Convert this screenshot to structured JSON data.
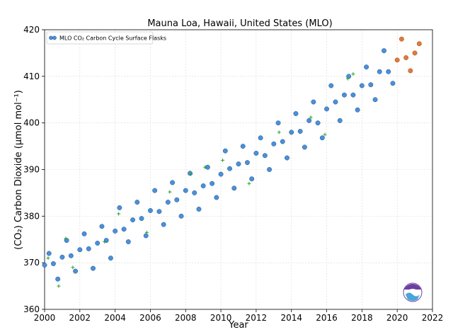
{
  "chart_data": {
    "type": "scatter",
    "title": "Mauna Loa, Hawaii, United States (MLO)",
    "xlabel": "Year",
    "ylabel": "(CO₂) Carbon Dioxide (μmol mol⁻¹)",
    "xlim": [
      2000,
      2022
    ],
    "ylim": [
      360,
      420
    ],
    "x_ticks": [
      "2000",
      "2002",
      "2004",
      "2006",
      "2008",
      "2010",
      "2012",
      "2014",
      "2016",
      "2018",
      "2020",
      "2022"
    ],
    "y_ticks": [
      "360",
      "370",
      "380",
      "390",
      "400",
      "410",
      "420"
    ],
    "grid": true,
    "legend_position": "top-left",
    "legend_label": "MLO CO₂ Carbon Cycle Surface Flasks",
    "series": [
      {
        "name": "MLO CO₂ Carbon Cycle Surface Flasks",
        "color": "#4a90d9",
        "edge_color": "#1f4e8c",
        "x": [
          2000.0,
          2000.25,
          2000.5,
          2000.75,
          2001.0,
          2001.25,
          2001.5,
          2001.75,
          2002.0,
          2002.25,
          2002.5,
          2002.75,
          2003.0,
          2003.25,
          2003.5,
          2003.75,
          2004.0,
          2004.25,
          2004.5,
          2004.75,
          2005.0,
          2005.25,
          2005.5,
          2005.75,
          2006.0,
          2006.25,
          2006.5,
          2006.75,
          2007.0,
          2007.25,
          2007.5,
          2007.75,
          2008.0,
          2008.25,
          2008.5,
          2008.75,
          2009.0,
          2009.25,
          2009.5,
          2009.75,
          2010.0,
          2010.25,
          2010.5,
          2010.75,
          2011.0,
          2011.25,
          2011.5,
          2011.75,
          2012.0,
          2012.25,
          2012.5,
          2012.75,
          2013.0,
          2013.25,
          2013.5,
          2013.75,
          2014.0,
          2014.25,
          2014.5,
          2014.75,
          2015.0,
          2015.25,
          2015.5,
          2015.75,
          2016.0,
          2016.25,
          2016.5,
          2016.75,
          2017.0,
          2017.25,
          2017.5,
          2017.75,
          2018.0,
          2018.25,
          2018.5,
          2018.75,
          2019.0,
          2019.25,
          2019.5,
          2019.75
        ],
        "y": [
          369.5,
          372.0,
          369.8,
          366.5,
          371.2,
          374.8,
          371.5,
          368.2,
          372.8,
          376.2,
          373.0,
          368.8,
          374.2,
          377.8,
          374.8,
          371.0,
          376.8,
          381.8,
          377.2,
          374.5,
          379.2,
          383.0,
          379.5,
          375.8,
          381.2,
          385.5,
          381.0,
          378.2,
          383.0,
          387.2,
          383.5,
          380.0,
          385.5,
          389.2,
          385.0,
          381.5,
          386.5,
          390.5,
          387.0,
          384.0,
          389.0,
          394.0,
          390.2,
          386.0,
          391.2,
          395.0,
          391.5,
          388.0,
          393.5,
          396.8,
          393.0,
          390.0,
          395.5,
          400.0,
          396.0,
          392.5,
          398.0,
          402.0,
          398.2,
          394.8,
          400.5,
          404.5,
          400.0,
          396.8,
          403.0,
          408.0,
          404.5,
          400.5,
          406.0,
          410.0,
          406.0,
          402.8,
          408.0,
          412.0,
          408.2,
          405.0,
          411.0,
          415.5,
          411.0,
          408.5
        ]
      },
      {
        "name": "",
        "color": "#2ca02c",
        "x": [
          2000.2,
          2000.8,
          2001.2,
          2001.6,
          2003.4,
          2004.2,
          2005.8,
          2007.1,
          2008.3,
          2009.1,
          2010.1,
          2011.6,
          2013.3,
          2015.1,
          2015.9,
          2017.2,
          2017.5
        ],
        "y": [
          371.0,
          365.0,
          375.2,
          369.0,
          374.5,
          380.5,
          376.5,
          385.2,
          389.0,
          390.5,
          392.0,
          387.0,
          398.0,
          401.2,
          397.5,
          409.5,
          410.5
        ]
      },
      {
        "name": "",
        "color": "#e07b39",
        "edge_color": "#9c4a17",
        "x": [
          2020.0,
          2020.25,
          2020.5,
          2020.75,
          2021.0,
          2021.25
        ],
        "y": [
          413.5,
          418.0,
          414.0,
          411.2,
          415.0,
          417.0
        ]
      }
    ]
  }
}
